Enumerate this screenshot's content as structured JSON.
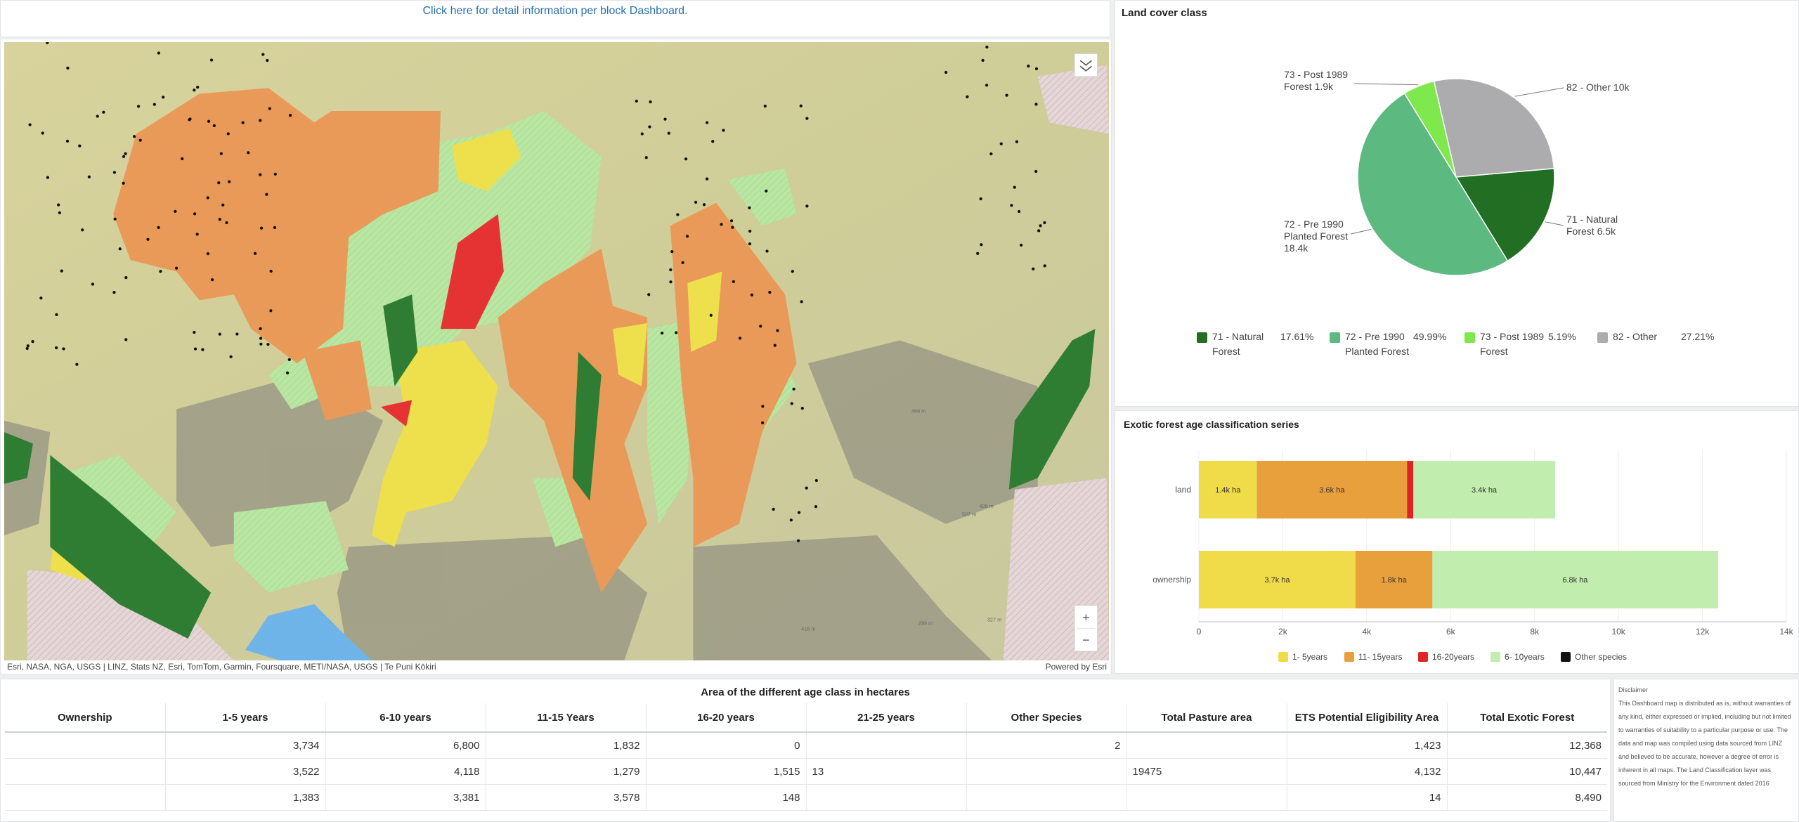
{
  "header": {
    "link": "Click here for detail information per block Dashboard."
  },
  "map": {
    "attribution": "Esri, NASA, NGA, USGS | LINZ, Stats NZ, Esri, TomTom, Garmin, Foursquare, METI/NASA, USGS | Te Puni Kōkiri",
    "powered_by": "Powered by Esri",
    "labels": [
      "468 m",
      "428 m",
      "507 m",
      "299 m",
      "327 m",
      "416 m"
    ],
    "controls": [
      "+",
      "−"
    ]
  },
  "chart_data": [
    {
      "type": "pie",
      "title": "Land cover class",
      "categories": [
        "71 - Natural Forest",
        "72 - Pre 1990 Planted Forest",
        "73 - Post 1989 Forest",
        "82 - Other"
      ],
      "values": [
        17.61,
        49.99,
        5.19,
        27.21
      ],
      "value_labels": [
        "17.61%",
        "49.99%",
        "5.19%",
        "27.21%"
      ],
      "area_values": [
        6500,
        18400,
        1900,
        10000
      ],
      "area_labels": [
        "6.5k",
        "18.4k",
        "1.9k",
        "10k"
      ],
      "colors": [
        "#226e22",
        "#5cba80",
        "#7ee84c",
        "#acacae"
      ]
    },
    {
      "type": "stacked_bar_horizontal",
      "title": "Exotic forest age classification series",
      "categories": [
        "land",
        "ownership"
      ],
      "series": [
        {
          "name": "1- 5years",
          "color": "#efdc48",
          "values": [
            1383,
            3734
          ],
          "value_labels": [
            "1.4k ha",
            "3.7k ha"
          ]
        },
        {
          "name": "11- 15years",
          "color": "#e8a03c",
          "values": [
            3578,
            1832
          ],
          "value_labels": [
            "3.6k ha",
            "1.8k ha"
          ]
        },
        {
          "name": "16-20years",
          "color": "#e02424",
          "values": [
            148,
            0
          ],
          "value_labels": [
            null,
            null
          ]
        },
        {
          "name": "6- 10years",
          "color": "#c1eeae",
          "values": [
            3381,
            6800
          ],
          "value_labels": [
            "3.4k ha",
            "6.8k ha"
          ]
        },
        {
          "name": "Other species",
          "color": "#111111",
          "values": [
            0,
            2
          ],
          "value_labels": [
            null,
            null
          ]
        }
      ],
      "xlim": [
        0,
        14000
      ],
      "xticks": [
        0,
        {
          "value": 2000,
          "label": "2k"
        },
        {
          "value": 4000,
          "label": "4k"
        },
        {
          "value": 6000,
          "label": "6k"
        },
        {
          "value": 8000,
          "label": "8k"
        },
        {
          "value": 10000,
          "label": "10k"
        },
        {
          "value": 12000,
          "label": "12k"
        },
        {
          "value": 14000,
          "label": "14k"
        }
      ],
      "grid": true
    }
  ],
  "table": {
    "title": "Area of the different age class in hectares",
    "columns": [
      "Ownership",
      "1-5 years",
      "6-10 years",
      "11-15 Years",
      "16-20 years",
      "21-25 years",
      "Other Species",
      "Total Pasture area",
      "ETS Potential Eligibility Area",
      "Total Exotic Forest"
    ],
    "rows": [
      [
        null,
        "3,734",
        "6,800",
        "1,832",
        "0",
        null,
        "2",
        null,
        "1,423",
        "12,368"
      ],
      [
        null,
        "3,522",
        "4,118",
        "1,279",
        "1,515",
        "13",
        null,
        "19475",
        "4,132",
        "10,447"
      ],
      [
        null,
        "1,383",
        "3,381",
        "3,578",
        "148",
        null,
        null,
        null,
        "14",
        "8,490"
      ]
    ]
  },
  "disclaimer": {
    "title": "Disclaimer",
    "text": "This Dashboard map is distributed as is, without warranties of any kind, either expressed or implied, including but not limited to warranties of suitability to a particular purpose or use. The data and map was compiled using data sourced from LINZ  and believed to be accurate, however a degree of error is inherent in all maps. The Land Classification layer was sourced from Ministry for the Environment dated 2016"
  }
}
